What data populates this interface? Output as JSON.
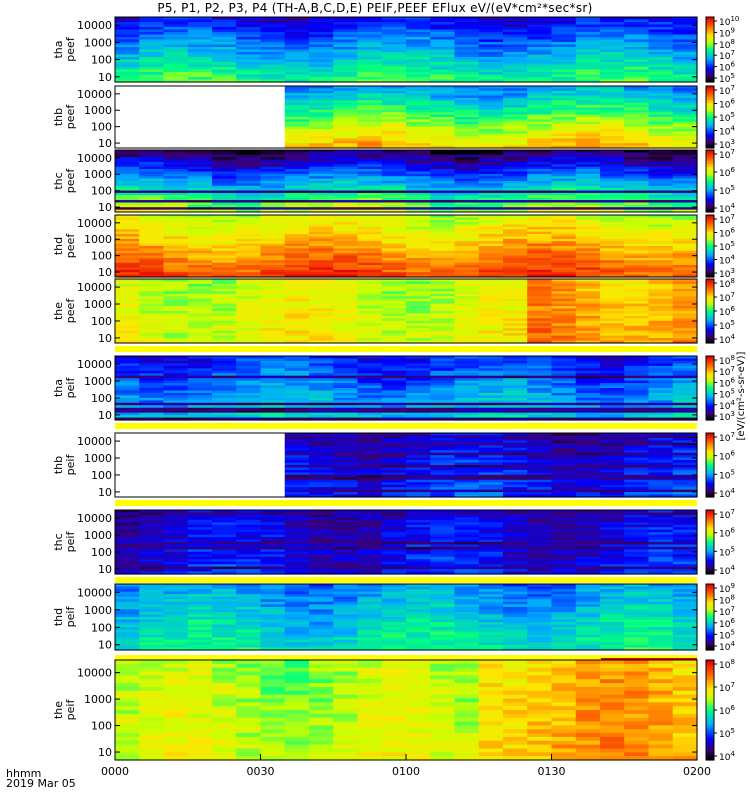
{
  "title": "P5, P1, P2, P3, P4 (TH-A,B,C,D,E) PEIF,PEEF EFlux eV/(eV*cm²*sec*sr)",
  "time_axis": {
    "label_line1": "hhmm",
    "label_line2": "2019 Mar 05",
    "ticks": [
      "0000",
      "0030",
      "0100",
      "0130",
      "0200"
    ]
  },
  "colorbar_unit": "[eV/(cm²-s-sr-eV)]",
  "chart_data": {
    "type": "heatmap",
    "x_range": [
      "0000",
      "0200"
    ],
    "y_scale": "log",
    "ylim": [
      5,
      30000
    ],
    "colormap": "rainbow",
    "panels": [
      {
        "ylabel": [
          "tha",
          "peef"
        ],
        "yticks": [
          "10000",
          "1000",
          "100",
          "10"
        ],
        "cb_ticks": [
          "10^10",
          "10^9",
          "10^8",
          "10^7",
          "10^6",
          "10^5"
        ],
        "level": 0.35,
        "low_gradient": 0.35,
        "gap_end": 0,
        "stripes": false
      },
      {
        "ylabel": [
          "thb",
          "peef"
        ],
        "yticks": [
          "10000",
          "1000",
          "100",
          "10"
        ],
        "cb_ticks": [
          "10^7",
          "10^6",
          "10^5",
          "10^4",
          "10^3"
        ],
        "level": 0.55,
        "low_gradient": 0.45,
        "gap_end": 7,
        "stripes": false
      },
      {
        "ylabel": [
          "thc",
          "peef"
        ],
        "yticks": [
          "10000",
          "1000",
          "100",
          "10"
        ],
        "cb_ticks": [
          "10^7",
          "10^6",
          "10^5",
          "10^4"
        ],
        "level": 0.35,
        "low_gradient": 0.6,
        "gap_end": 0,
        "stripes": true
      },
      {
        "ylabel": [
          "thd",
          "peef"
        ],
        "yticks": [
          "10000",
          "1000",
          "100",
          "10"
        ],
        "cb_ticks": [
          "10^7",
          "10^6",
          "10^5",
          "10^4",
          "10^3"
        ],
        "level": 0.78,
        "low_gradient": 0.3,
        "gap_end": 0,
        "stripes": false
      },
      {
        "ylabel": [
          "the",
          "peef"
        ],
        "yticks": [
          "10000",
          "1000",
          "100",
          "10"
        ],
        "cb_ticks": [
          "10^8",
          "10^7",
          "10^6",
          "10^5",
          "10^4"
        ],
        "level": 0.65,
        "low_gradient": 0.05,
        "gap_end": 0,
        "stripes": false
      },
      {
        "ylabel": [
          "tha",
          "peif"
        ],
        "yticks": [
          "10000",
          "1000",
          "100",
          "10"
        ],
        "cb_ticks": [
          "10^8",
          "10^7",
          "10^6",
          "10^5",
          "10^4",
          "10^3"
        ],
        "level": 0.32,
        "low_gradient": 0.2,
        "gap_end": 0,
        "stripes": true
      },
      {
        "ylabel": [
          "thb",
          "peif"
        ],
        "yticks": [
          "10000",
          "1000",
          "100",
          "10"
        ],
        "cb_ticks": [
          "10^7",
          "10^6",
          "10^5",
          "10^4"
        ],
        "level": 0.2,
        "low_gradient": 0.1,
        "gap_end": 7,
        "stripes": true
      },
      {
        "ylabel": [
          "thc",
          "peif"
        ],
        "yticks": [
          "10000",
          "1000",
          "100",
          "10"
        ],
        "cb_ticks": [
          "10^7",
          "10^6",
          "10^5",
          "10^4"
        ],
        "level": 0.18,
        "low_gradient": 0.05,
        "gap_end": 0,
        "stripes": true
      },
      {
        "ylabel": [
          "thd",
          "peif"
        ],
        "yticks": [
          "10000",
          "1000",
          "100",
          "10"
        ],
        "cb_ticks": [
          "10^9",
          "10^8",
          "10^7",
          "10^6",
          "10^5",
          "10^4"
        ],
        "level": 0.4,
        "low_gradient": 0.15,
        "gap_end": 0,
        "stripes": false
      },
      {
        "ylabel": [
          "the",
          "peif"
        ],
        "yticks": [
          "10000",
          "1000",
          "100",
          "10"
        ],
        "cb_ticks": [
          "10^8",
          "10^7",
          "10^6",
          "10^5",
          "10^4"
        ],
        "level": 0.62,
        "low_gradient": 0.05,
        "gap_end": 0,
        "stripes": false
      }
    ]
  }
}
